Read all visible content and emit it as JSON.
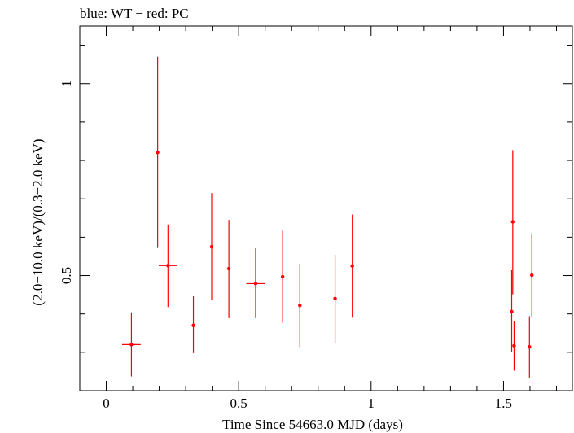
{
  "chart_data": {
    "type": "scatter",
    "title": "blue: WT − red: PC",
    "xlabel": "Time Since 54663.0 MJD (days)",
    "ylabel": "(2.0−10.0 keV)/(0.3−2.0 keV)",
    "xlim": [
      -0.1,
      1.76
    ],
    "ylim": [
      0.2,
      1.15
    ],
    "x_ticks": [
      {
        "value": 0,
        "label": "0"
      },
      {
        "value": 0.5,
        "label": "0.5"
      },
      {
        "value": 1,
        "label": "1"
      },
      {
        "value": 1.5,
        "label": "1.5"
      }
    ],
    "y_ticks": [
      {
        "value": 0.5,
        "label": "0.5"
      },
      {
        "value": 1,
        "label": "1"
      }
    ],
    "grid": false,
    "series": [
      {
        "color": "#ff0000",
        "points": [
          {
            "x": 0.095,
            "y": 0.32,
            "xerr": 0.035,
            "ylo": 0.237,
            "yhi": 0.404
          },
          {
            "x": 0.194,
            "y": 0.821,
            "xerr": 0.0,
            "ylo": 0.572,
            "yhi": 1.07
          },
          {
            "x": 0.233,
            "y": 0.526,
            "xerr": 0.035,
            "ylo": 0.418,
            "yhi": 0.633
          },
          {
            "x": 0.329,
            "y": 0.37,
            "xerr": 0.0,
            "ylo": 0.298,
            "yhi": 0.446
          },
          {
            "x": 0.398,
            "y": 0.575,
            "xerr": 0.0,
            "ylo": 0.436,
            "yhi": 0.715
          },
          {
            "x": 0.463,
            "y": 0.518,
            "xerr": 0.0,
            "ylo": 0.389,
            "yhi": 0.645
          },
          {
            "x": 0.564,
            "y": 0.479,
            "xerr": 0.035,
            "ylo": 0.389,
            "yhi": 0.571
          },
          {
            "x": 0.666,
            "y": 0.497,
            "xerr": 0.0,
            "ylo": 0.377,
            "yhi": 0.617
          },
          {
            "x": 0.731,
            "y": 0.422,
            "xerr": 0.0,
            "ylo": 0.314,
            "yhi": 0.531
          },
          {
            "x": 0.864,
            "y": 0.44,
            "xerr": 0.0,
            "ylo": 0.325,
            "yhi": 0.554
          },
          {
            "x": 0.929,
            "y": 0.525,
            "xerr": 0.0,
            "ylo": 0.39,
            "yhi": 0.659
          },
          {
            "x": 1.531,
            "y": 0.406,
            "xerr": 0.0,
            "ylo": 0.301,
            "yhi": 0.514
          },
          {
            "x": 1.535,
            "y": 0.64,
            "xerr": 0.0,
            "ylo": 0.451,
            "yhi": 0.827
          },
          {
            "x": 1.54,
            "y": 0.317,
            "xerr": 0.0,
            "ylo": 0.252,
            "yhi": 0.381
          },
          {
            "x": 1.598,
            "y": 0.314,
            "xerr": 0.0,
            "ylo": 0.234,
            "yhi": 0.394
          },
          {
            "x": 1.607,
            "y": 0.501,
            "xerr": 0.0,
            "ylo": 0.391,
            "yhi": 0.61
          }
        ]
      }
    ]
  }
}
